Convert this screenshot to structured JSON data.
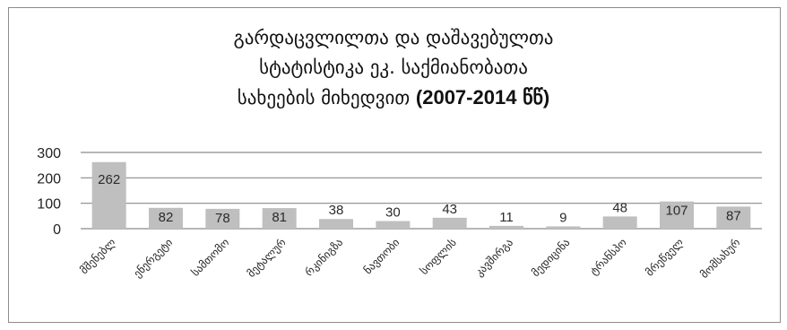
{
  "chart_data": {
    "type": "bar",
    "title": {
      "line1": "გარდაცვლილთა და დაშავებულთა",
      "line2": "სტატისტიკა ეკ. საქმიანობათა",
      "line3_text": "სახეების მიხედვით",
      "line3_years": "(2007-2014",
      "line3_suffix": "წწ)"
    },
    "categories": [
      "მშენებლ",
      "ენერგეტი",
      "სამთომო",
      "მეტალურ",
      "რკინიგზა",
      "ნავთობი",
      "სოფლის",
      "კავშირგა",
      "მედიცინა",
      "ტრანსპო",
      "მრეწველ",
      "მომსახურ"
    ],
    "values": [
      262,
      82,
      78,
      81,
      38,
      30,
      43,
      11,
      9,
      48,
      107,
      87
    ],
    "ylim": [
      0,
      300
    ],
    "yticks": [
      "0",
      "100",
      "200",
      "300"
    ],
    "xlabel": "",
    "ylabel": "",
    "grid": true,
    "bar_color": "#bfbfbf",
    "grid_color": "#8a8a8a"
  }
}
